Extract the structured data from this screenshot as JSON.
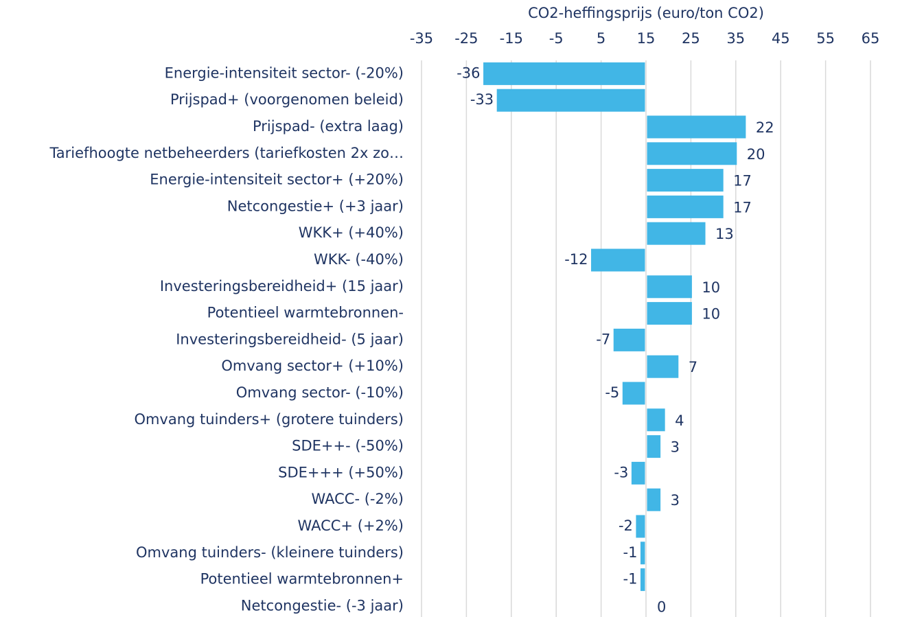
{
  "chart_data": {
    "type": "bar",
    "orientation": "horizontal",
    "title": "CO2-heffingsprijs (euro/ton CO2)",
    "categories": [
      "Energie-intensiteit sector- (-20%)",
      "Prijspad+ (voorgenomen beleid)",
      "Prijspad- (extra laag)",
      "Tariefhoogte netbeheerders (tariefkosten 2x zo…",
      "Energie-intensiteit sector+ (+20%)",
      "Netcongestie+ (+3 jaar)",
      "WKK+ (+40%)",
      "WKK- (-40%)",
      "Investeringsbereidheid+ (15 jaar)",
      "Potentieel warmtebronnen-",
      "Investeringsbereidheid- (5 jaar)",
      "Omvang sector+ (+10%)",
      "Omvang sector- (-10%)",
      "Omvang tuinders+ (grotere tuinders)",
      "SDE++- (-50%)",
      "SDE+++ (+50%)",
      "WACC- (-2%)",
      "WACC+ (+2%)",
      "Omvang tuinders- (kleinere tuinders)",
      "Potentieel warmtebronnen+",
      "Netcongestie- (-3 jaar)"
    ],
    "values": [
      -36,
      -33,
      22,
      20,
      17,
      17,
      13,
      -12,
      10,
      10,
      -7,
      7,
      -5,
      4,
      3,
      -3,
      3,
      -2,
      -1,
      -1,
      0
    ],
    "base": 15,
    "color": "#41b6e6",
    "xlim": [
      -35,
      65
    ],
    "xticks": [
      -35,
      -25,
      -15,
      -5,
      5,
      15,
      25,
      35,
      45,
      55,
      65
    ],
    "grid": true
  }
}
